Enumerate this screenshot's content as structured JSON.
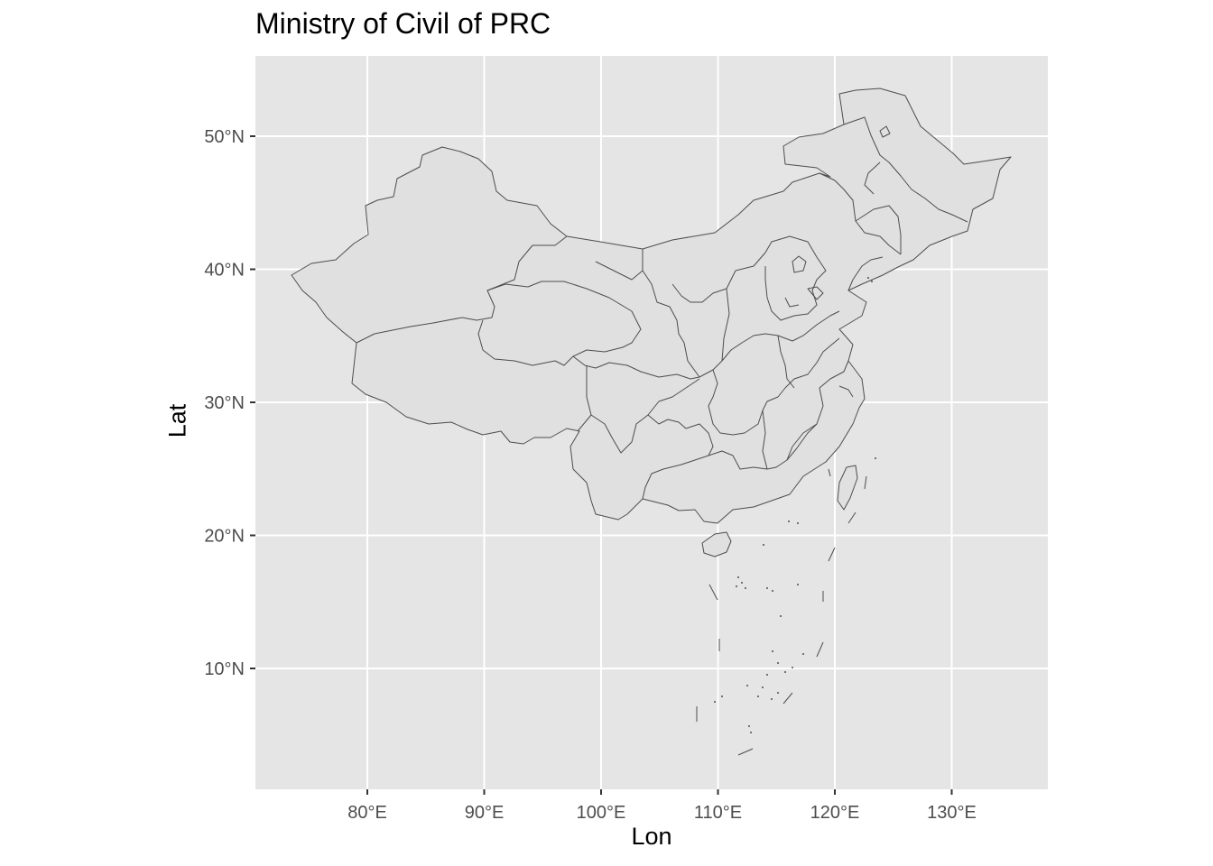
{
  "title": "Ministry of Civil of PRC",
  "x_axis": {
    "label": "Lon",
    "ticks": [
      {
        "value": 80,
        "label": "80°E"
      },
      {
        "value": 90,
        "label": "90°E"
      },
      {
        "value": 100,
        "label": "100°E"
      },
      {
        "value": 110,
        "label": "110°E"
      },
      {
        "value": 120,
        "label": "120°E"
      },
      {
        "value": 130,
        "label": "130°E"
      }
    ]
  },
  "y_axis": {
    "label": "Lat",
    "ticks": [
      {
        "value": 10,
        "label": "10°N"
      },
      {
        "value": 20,
        "label": "20°N"
      },
      {
        "value": 30,
        "label": "30°N"
      },
      {
        "value": 40,
        "label": "40°N"
      },
      {
        "value": 50,
        "label": "50°N"
      }
    ]
  },
  "colors": {
    "panel_background": "#e5e5e5",
    "grid": "#ffffff",
    "land_fill": "#e0e0e0",
    "border": "#4d4d4d",
    "tick_text": "#4d4d4d"
  },
  "map": {
    "region": "China provinces",
    "lon_range": [
      70.5,
      138.0
    ],
    "lat_range": [
      1.0,
      56.0
    ],
    "grid": true
  }
}
